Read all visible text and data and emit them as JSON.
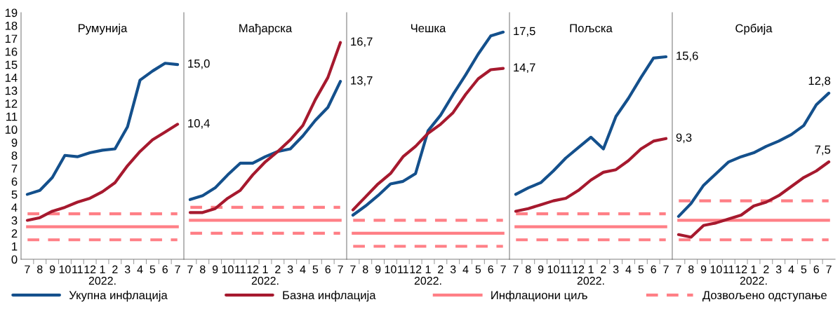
{
  "chart_data": [
    {
      "type": "line",
      "title": "Румунија",
      "xlabel": "2022.",
      "categories": [
        "7",
        "8",
        "9",
        "10",
        "11",
        "12",
        "1",
        "2",
        "3",
        "4",
        "5",
        "6",
        "7"
      ],
      "ylim": [
        0,
        19
      ],
      "yticks": [
        0,
        1,
        2,
        3,
        4,
        5,
        6,
        7,
        8,
        9,
        10,
        11,
        12,
        13,
        14,
        15,
        16,
        17,
        18,
        19
      ],
      "legend": "bottom",
      "series": [
        {
          "name": "Укупна инфлација",
          "color": "#14508c",
          "values": [
            5.0,
            5.3,
            6.3,
            8.0,
            7.9,
            8.2,
            8.4,
            8.5,
            10.2,
            13.8,
            14.5,
            15.1,
            15.0
          ],
          "value_labels": [
            null,
            null,
            null,
            null,
            null,
            null,
            null,
            null,
            null,
            null,
            null,
            null,
            "15,0"
          ]
        },
        {
          "name": "Базна инфлација",
          "color": "#a6192e",
          "values": [
            3.0,
            3.2,
            3.7,
            4.0,
            4.4,
            4.7,
            5.2,
            5.9,
            7.2,
            8.3,
            9.2,
            9.8,
            10.4
          ],
          "value_labels": [
            null,
            null,
            null,
            null,
            null,
            null,
            null,
            null,
            null,
            null,
            null,
            null,
            "10,4"
          ]
        }
      ],
      "ref_lines": [
        {
          "axis": "y",
          "value": 2.5,
          "label": "Инфлациони циљ",
          "color": "#ff7f86",
          "line_style": "solid"
        },
        {
          "axis": "y",
          "value": 3.5,
          "label": "Дозвољено одступање",
          "color": "#ff7f86",
          "line_style": "dashed"
        },
        {
          "axis": "y",
          "value": 1.5,
          "color": "#ff7f86",
          "line_style": "dashed"
        }
      ]
    },
    {
      "type": "line",
      "title": "Мађарска",
      "xlabel": "2022.",
      "categories": [
        "7",
        "8",
        "9",
        "10",
        "11",
        "12",
        "1",
        "2",
        "3",
        "4",
        "5",
        "6",
        "7"
      ],
      "ylim": [
        0,
        19
      ],
      "tick_labels": "x",
      "series": [
        {
          "color": "#14508c",
          "values": [
            4.6,
            4.9,
            5.5,
            6.5,
            7.4,
            7.4,
            7.9,
            8.3,
            8.5,
            9.5,
            10.7,
            11.7,
            13.7
          ],
          "value_labels": [
            null,
            null,
            null,
            null,
            null,
            null,
            null,
            null,
            null,
            null,
            null,
            null,
            "13,7"
          ]
        },
        {
          "color": "#a6192e",
          "values": [
            3.6,
            3.6,
            3.9,
            4.7,
            5.3,
            6.5,
            7.5,
            8.3,
            9.2,
            10.3,
            12.3,
            14.0,
            16.7
          ],
          "value_labels": [
            null,
            null,
            null,
            null,
            null,
            null,
            null,
            null,
            null,
            null,
            null,
            null,
            "16,7"
          ]
        }
      ],
      "ref_lines": [
        {
          "axis": "y",
          "value": 3,
          "color": "#ff7f86",
          "line_style": "solid"
        },
        {
          "axis": "y",
          "value": 4,
          "color": "#ff7f86",
          "line_style": "dashed"
        },
        {
          "axis": "y",
          "value": 2,
          "color": "#ff7f86",
          "line_style": "dashed"
        }
      ]
    },
    {
      "type": "line",
      "title": "Чешка",
      "xlabel": "2022.",
      "categories": [
        "7",
        "8",
        "9",
        "10",
        "11",
        "12",
        "1",
        "2",
        "3",
        "4",
        "5",
        "6",
        "7"
      ],
      "ylim": [
        0,
        19
      ],
      "tick_labels": "x",
      "series": [
        {
          "color": "#14508c",
          "values": [
            3.4,
            4.1,
            4.9,
            5.8,
            6.0,
            6.6,
            9.9,
            11.1,
            12.7,
            14.2,
            15.8,
            17.2,
            17.5
          ],
          "value_labels": [
            null,
            null,
            null,
            null,
            null,
            null,
            null,
            null,
            null,
            null,
            null,
            null,
            "17,5"
          ]
        },
        {
          "color": "#a6192e",
          "values": [
            3.8,
            4.8,
            5.8,
            6.6,
            7.9,
            8.7,
            9.7,
            10.4,
            11.3,
            12.7,
            13.9,
            14.6,
            14.7
          ],
          "value_labels": [
            null,
            null,
            null,
            null,
            null,
            null,
            null,
            null,
            null,
            null,
            null,
            null,
            "14,7"
          ]
        }
      ],
      "ref_lines": [
        {
          "axis": "y",
          "value": 2,
          "color": "#ff7f86",
          "line_style": "solid"
        },
        {
          "axis": "y",
          "value": 3,
          "color": "#ff7f86",
          "line_style": "dashed"
        },
        {
          "axis": "y",
          "value": 1,
          "color": "#ff7f86",
          "line_style": "dashed"
        }
      ]
    },
    {
      "type": "line",
      "title": "Пољска",
      "xlabel": "2022.",
      "categories": [
        "7",
        "8",
        "9",
        "10",
        "11",
        "12",
        "1",
        "2",
        "3",
        "4",
        "5",
        "6",
        "7"
      ],
      "ylim": [
        0,
        19
      ],
      "tick_labels": "x",
      "series": [
        {
          "color": "#14508c",
          "values": [
            5.0,
            5.5,
            5.9,
            6.8,
            7.8,
            8.6,
            9.4,
            8.5,
            11.0,
            12.4,
            14.0,
            15.5,
            15.6
          ],
          "value_labels": [
            null,
            null,
            null,
            null,
            null,
            null,
            null,
            null,
            null,
            null,
            null,
            null,
            "15,6"
          ]
        },
        {
          "color": "#a6192e",
          "values": [
            3.7,
            3.9,
            4.2,
            4.5,
            4.7,
            5.3,
            6.1,
            6.7,
            6.9,
            7.6,
            8.5,
            9.1,
            9.3
          ],
          "value_labels": [
            null,
            null,
            null,
            null,
            null,
            null,
            null,
            null,
            null,
            null,
            null,
            null,
            "9,3"
          ]
        }
      ],
      "ref_lines": [
        {
          "axis": "y",
          "value": 2.5,
          "color": "#ff7f86",
          "line_style": "solid"
        },
        {
          "axis": "y",
          "value": 3.5,
          "color": "#ff7f86",
          "line_style": "dashed"
        },
        {
          "axis": "y",
          "value": 1.5,
          "color": "#ff7f86",
          "line_style": "dashed"
        }
      ]
    },
    {
      "type": "line",
      "title": "Србија",
      "xlabel": "2022.",
      "categories": [
        "7",
        "8",
        "9",
        "10",
        "11",
        "12",
        "1",
        "2",
        "3",
        "4",
        "5",
        "6",
        "7"
      ],
      "ylim": [
        0,
        19
      ],
      "tick_labels": "x",
      "series": [
        {
          "color": "#14508c",
          "values": [
            3.3,
            4.3,
            5.7,
            6.6,
            7.5,
            7.9,
            8.2,
            8.7,
            9.1,
            9.6,
            10.3,
            11.9,
            12.8
          ],
          "value_labels": [
            null,
            null,
            null,
            null,
            null,
            null,
            null,
            null,
            null,
            null,
            null,
            null,
            "12,8"
          ]
        },
        {
          "color": "#a6192e",
          "values": [
            1.9,
            1.7,
            2.6,
            2.8,
            3.1,
            3.4,
            4.1,
            4.4,
            4.9,
            5.6,
            6.3,
            6.8,
            7.5
          ],
          "value_labels": [
            null,
            null,
            null,
            null,
            null,
            null,
            null,
            null,
            null,
            null,
            null,
            null,
            "7,5"
          ]
        }
      ],
      "ref_lines": [
        {
          "axis": "y",
          "value": 3,
          "color": "#ff7f86",
          "line_style": "solid"
        },
        {
          "axis": "y",
          "value": 4.5,
          "color": "#ff7f86",
          "line_style": "dashed"
        },
        {
          "axis": "y",
          "value": 1.5,
          "color": "#ff7f86",
          "line_style": "dashed"
        }
      ]
    }
  ]
}
